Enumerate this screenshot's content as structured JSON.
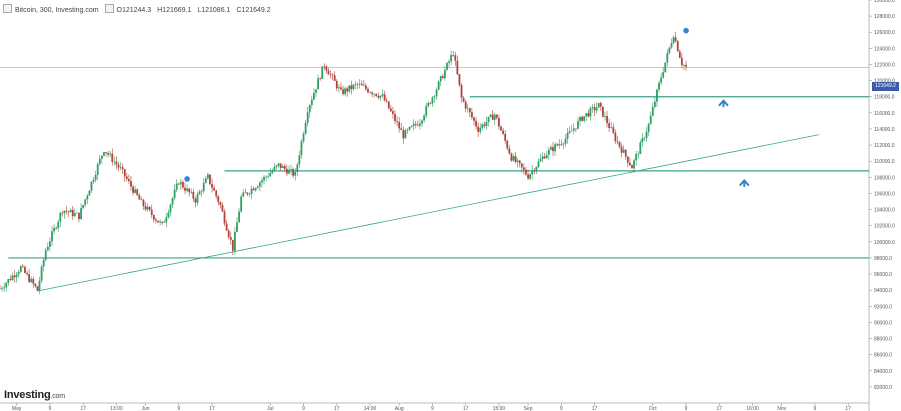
{
  "header": {
    "symbol": "Bitcoin, 300, Investing.com",
    "open": "O121244.3",
    "high": "H121669.1",
    "low": "L121086.1",
    "close": "C121649.2"
  },
  "logo": {
    "brand": "Investing",
    "suffix": ".com"
  },
  "colors": {
    "up": "#2e9e64",
    "down": "#b0433a",
    "support_line": "#3aa38a",
    "trend_line": "#3aa38a",
    "price_tag": "#3d5ca8",
    "arrow": "#3d82c3",
    "marker": "#2f86d6"
  },
  "icons": [
    "arrow-up-icon",
    "event-marker-icon"
  ],
  "chart_data": {
    "type": "candlestick",
    "title": "",
    "ylim": [
      80000,
      130000
    ],
    "y_ticks": [
      {
        "value": 82000,
        "label": "82000.0"
      },
      {
        "value": 84000,
        "label": "84000.0"
      },
      {
        "value": 86000,
        "label": "86000.0"
      },
      {
        "value": 88000,
        "label": "88000.0"
      },
      {
        "value": 90000,
        "label": "90000.0"
      },
      {
        "value": 92000,
        "label": "92000.0"
      },
      {
        "value": 94000,
        "label": "94000.0"
      },
      {
        "value": 96000,
        "label": "96000.0"
      },
      {
        "value": 98000,
        "label": "98000.0"
      },
      {
        "value": 100000,
        "label": "100000.0"
      },
      {
        "value": 102000,
        "label": "102000.0"
      },
      {
        "value": 104000,
        "label": "104000.0"
      },
      {
        "value": 106000,
        "label": "106000.0"
      },
      {
        "value": 108000,
        "label": "108000.0"
      },
      {
        "value": 110000,
        "label": "110000.0"
      },
      {
        "value": 112000,
        "label": "112000.0"
      },
      {
        "value": 114000,
        "label": "114000.0"
      },
      {
        "value": 116000,
        "label": "116000.0"
      },
      {
        "value": 118000,
        "label": "118000.0"
      },
      {
        "value": 120000,
        "label": "120000.0"
      },
      {
        "value": 122000,
        "label": "122000.0"
      },
      {
        "value": 124000,
        "label": "124000.0"
      },
      {
        "value": 126000,
        "label": "126000.0"
      },
      {
        "value": 128000,
        "label": "128000.0"
      },
      {
        "value": 130000,
        "label": "130000.0"
      }
    ],
    "x_ticks": [
      "May",
      "9",
      "17",
      "13:00",
      "Jun",
      "9",
      "17",
      "Jul",
      "9",
      "17",
      "14:00",
      "Aug",
      "9",
      "17",
      "15:00",
      "Sep",
      "9",
      "17",
      "Oct",
      "9",
      "17",
      "16:00",
      "Nov",
      "9",
      "17"
    ],
    "x_tick_dates": [
      "2025-05-01",
      "2025-05-09",
      "2025-05-17",
      "2025-05-25",
      "2025-06-01",
      "2025-06-09",
      "2025-06-17",
      "2025-07-01",
      "2025-07-09",
      "2025-07-17",
      "2025-07-25",
      "2025-08-01",
      "2025-08-09",
      "2025-08-17",
      "2025-08-25",
      "2025-09-01",
      "2025-09-09",
      "2025-09-17",
      "2025-10-01",
      "2025-10-09",
      "2025-10-17",
      "2025-10-25",
      "2025-11-01",
      "2025-11-09",
      "2025-11-17"
    ],
    "last_price": "121649.2",
    "price_path": [
      {
        "x": "2025-04-27",
        "y": 94200
      },
      {
        "x": "2025-05-02",
        "y": 96800
      },
      {
        "x": "2025-05-06",
        "y": 94000
      },
      {
        "x": "2025-05-08",
        "y": 99000
      },
      {
        "x": "2025-05-12",
        "y": 104000
      },
      {
        "x": "2025-05-16",
        "y": 103200
      },
      {
        "x": "2025-05-22",
        "y": 111500
      },
      {
        "x": "2025-05-26",
        "y": 109000
      },
      {
        "x": "2025-05-31",
        "y": 104800
      },
      {
        "x": "2025-06-05",
        "y": 102000
      },
      {
        "x": "2025-06-09",
        "y": 107500
      },
      {
        "x": "2025-06-13",
        "y": 105200
      },
      {
        "x": "2025-06-16",
        "y": 108000
      },
      {
        "x": "2025-06-19",
        "y": 104500
      },
      {
        "x": "2025-06-22",
        "y": 99200
      },
      {
        "x": "2025-06-24",
        "y": 105500
      },
      {
        "x": "2025-06-28",
        "y": 107200
      },
      {
        "x": "2025-07-03",
        "y": 109500
      },
      {
        "x": "2025-07-07",
        "y": 108300
      },
      {
        "x": "2025-07-10",
        "y": 116500
      },
      {
        "x": "2025-07-14",
        "y": 122000
      },
      {
        "x": "2025-07-18",
        "y": 118500
      },
      {
        "x": "2025-07-22",
        "y": 119500
      },
      {
        "x": "2025-07-28",
        "y": 118000
      },
      {
        "x": "2025-08-02",
        "y": 113200
      },
      {
        "x": "2025-08-06",
        "y": 115000
      },
      {
        "x": "2025-08-10",
        "y": 119000
      },
      {
        "x": "2025-08-14",
        "y": 123500
      },
      {
        "x": "2025-08-16",
        "y": 117800
      },
      {
        "x": "2025-08-20",
        "y": 114000
      },
      {
        "x": "2025-08-24",
        "y": 115800
      },
      {
        "x": "2025-08-28",
        "y": 110500
      },
      {
        "x": "2025-09-01",
        "y": 108200
      },
      {
        "x": "2025-09-05",
        "y": 110800
      },
      {
        "x": "2025-09-10",
        "y": 112800
      },
      {
        "x": "2025-09-14",
        "y": 115400
      },
      {
        "x": "2025-09-18",
        "y": 116900
      },
      {
        "x": "2025-09-22",
        "y": 112800
      },
      {
        "x": "2025-09-26",
        "y": 109300
      },
      {
        "x": "2025-09-30",
        "y": 114500
      },
      {
        "x": "2025-10-03",
        "y": 120500
      },
      {
        "x": "2025-10-06",
        "y": 125800
      },
      {
        "x": "2025-10-08",
        "y": 122200
      },
      {
        "x": "2025-10-09",
        "y": 121649
      }
    ],
    "horizontal_lines": [
      {
        "y": 118000,
        "x_start": "2025-08-18"
      },
      {
        "y": 108800,
        "x_start": "2025-06-20"
      },
      {
        "y": 98000,
        "x_start": "2025-04-29"
      }
    ],
    "trend_line": [
      {
        "x": "2025-05-06",
        "y": 93900
      },
      {
        "x": "2025-11-10",
        "y": 113300
      }
    ],
    "current_price_line": 121649,
    "arrows": [
      {
        "x": "2025-10-18",
        "y": 117200
      },
      {
        "x": "2025-10-23",
        "y": 107300
      }
    ],
    "markers": [
      {
        "x": "2025-06-11",
        "y": 107800
      },
      {
        "x": "2025-10-09",
        "y": 126200
      }
    ]
  }
}
